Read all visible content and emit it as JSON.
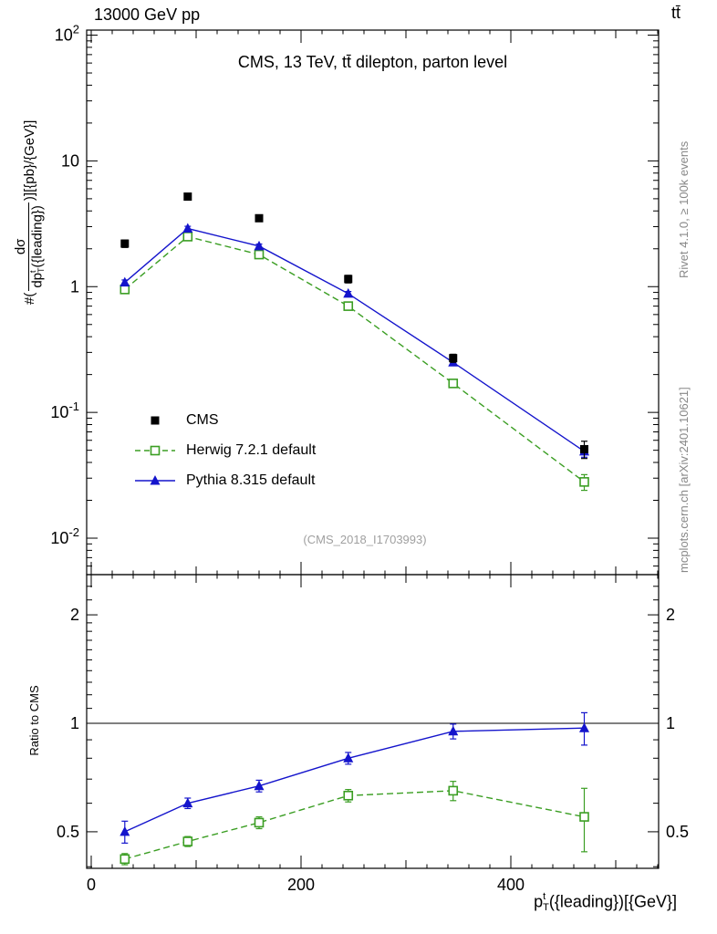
{
  "header": {
    "collision": "13000 GeV pp",
    "process": "tt̄"
  },
  "titles": {
    "plot_title": "CMS, 13 TeV, tt̄ dilepton, parton level",
    "watermark": "(CMS_2018_I1703993)",
    "rivet_note": "Rivet 4.1.0, ≥ 100k events",
    "mcplots_note": "mcplots.cern.ch [arXiv:2401.10621]"
  },
  "axis_labels": {
    "y_prefix": "#(",
    "y_numerator": "dσ",
    "y_den_main": "dp",
    "y_den_sup": "t",
    "y_den_sub": "T",
    "y_den_rest": "({leading})",
    "y_suffix": ")][{pb}/{GeV}]",
    "x_main": "p",
    "x_sup": "t",
    "x_sub": "T",
    "x_rest": "({leading})[{GeV}]"
  },
  "chart_data": {
    "type": "line",
    "title": "CMS, 13 TeV, tt̄ dilepton, parton level",
    "xlabel": "p_T^t({leading}) [GeV]",
    "ylabel": "#(dσ/dp_T^t({leading})) [pb/GeV]",
    "x": [
      32,
      92,
      160,
      245,
      345,
      470
    ],
    "series": [
      {
        "name": "CMS",
        "color": "#000000",
        "marker": "square-filled",
        "line": "none",
        "values": [
          2.2,
          5.2,
          3.5,
          1.15,
          0.27,
          0.051
        ],
        "errors": [
          0.15,
          0.3,
          0.2,
          0.08,
          0.02,
          0.008
        ]
      },
      {
        "name": "Herwig 7.2.1 default",
        "color": "#3b9e23",
        "marker": "square-open",
        "line": "dashed",
        "values": [
          0.95,
          2.5,
          1.8,
          0.7,
          0.17,
          0.028
        ],
        "errors": [
          0.04,
          0.1,
          0.07,
          0.03,
          0.008,
          0.004
        ]
      },
      {
        "name": "Pythia 8.315 default",
        "color": "#1414cc",
        "marker": "triangle-filled",
        "line": "solid",
        "values": [
          1.08,
          2.9,
          2.1,
          0.88,
          0.25,
          0.049
        ],
        "errors": [
          0.05,
          0.12,
          0.08,
          0.035,
          0.01,
          0.005
        ]
      }
    ],
    "ratio": {
      "ylabel": "Ratio to CMS",
      "reference": 1,
      "series": [
        {
          "name": "Herwig 7.2.1 default",
          "color": "#3b9e23",
          "marker": "square-open",
          "line": "dashed",
          "values": [
            0.42,
            0.47,
            0.53,
            0.63,
            0.65,
            0.55
          ],
          "errors": [
            0.015,
            0.015,
            0.02,
            0.025,
            0.04,
            0.11
          ]
        },
        {
          "name": "Pythia 8.315 default",
          "color": "#1414cc",
          "marker": "triangle-filled",
          "line": "solid",
          "values": [
            0.5,
            0.6,
            0.67,
            0.8,
            0.95,
            0.97
          ],
          "errors": [
            0.035,
            0.02,
            0.025,
            0.03,
            0.045,
            0.1
          ]
        }
      ]
    },
    "axes": {
      "x": {
        "min": 0,
        "max": 540,
        "major": [
          0,
          200,
          400
        ],
        "medium": [
          100,
          300,
          500
        ],
        "minor_step": 20,
        "tick_labels": [
          "0",
          "200",
          "400"
        ]
      },
      "y_main": {
        "scale": "log",
        "top_log": 2.04,
        "bottom_log": -2.29,
        "decades": [
          2,
          1,
          0,
          -1,
          -2
        ]
      },
      "y_ratio": {
        "scale": "log",
        "top_log": 0.4126,
        "bottom_log": -0.4025,
        "major": [
          0.5,
          1,
          2
        ],
        "tick_labels": [
          "0.5",
          "1",
          "2"
        ],
        "minor": [
          0.4,
          0.6,
          0.7,
          0.8,
          0.9,
          1.1,
          1.2,
          1.3,
          1.4,
          1.5,
          1.6,
          1.7,
          1.8,
          1.9,
          2.2,
          2.4
        ]
      }
    }
  }
}
